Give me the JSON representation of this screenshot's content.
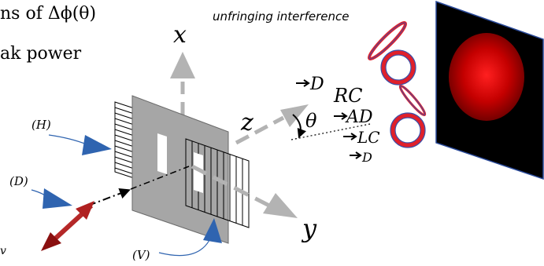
{
  "text": {
    "header_line1": "ns of Δϕ(θ)",
    "header_line2": "ak power",
    "interference_caption": "unfringing interference",
    "axis_x": "x",
    "axis_y": "y",
    "axis_z": "z",
    "angle_theta": "θ",
    "label_H": "(H)",
    "label_D": "(D)",
    "label_V": "(V)",
    "fragment_v": "v",
    "polarization_states": [
      "D",
      "RC",
      "AD",
      "LC",
      "D"
    ]
  },
  "colors": {
    "axis_gray": "#b3b3b3",
    "plate_fill": "#a6a6a6",
    "blue_arrow": "#2f64b0",
    "ring_red": "#e0202a",
    "ring_blue": "#3c4fa8",
    "spot_center": "#ff1a1a",
    "spot_edge": "#7a0000",
    "screen_bg": "#000000",
    "double_arrow_red": "#b02020"
  },
  "icons": {
    "photon_arrow": "red-double-headed-arrow",
    "state_arrow": "right-arrow"
  }
}
